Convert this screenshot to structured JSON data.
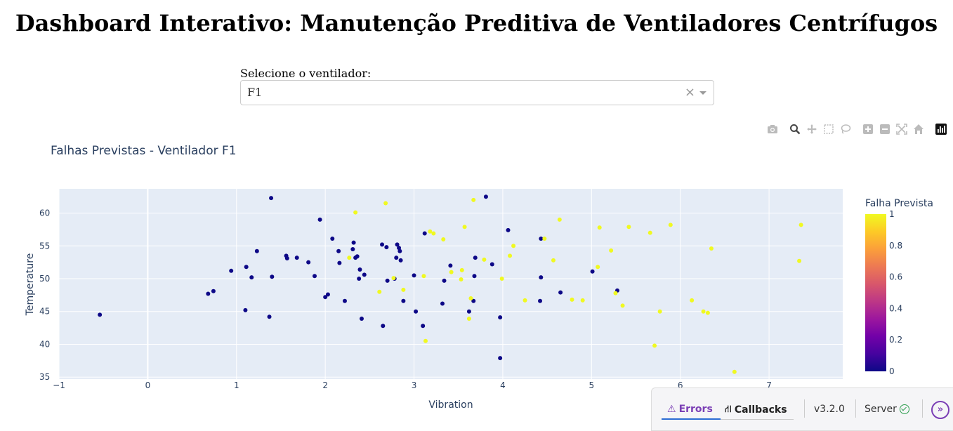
{
  "page": {
    "title": "Dashboard Interativo: Manutenção Preditiva de Ventiladores Centrífugos"
  },
  "selector": {
    "label": "Selecione o ventilador:",
    "value": "F1",
    "clear_glyph": "×"
  },
  "modebar": {
    "icons": [
      "camera-icon",
      "zoom-icon",
      "pan-icon",
      "box-select-icon",
      "lasso-icon",
      "zoom-in-icon",
      "zoom-out-icon",
      "autoscale-icon",
      "reset-axes-icon",
      "plotly-logo-icon"
    ]
  },
  "chart_data": {
    "type": "scatter",
    "title": "Falhas Previstas - Ventilador F1",
    "xlabel": "Vibration",
    "ylabel": "Temperature",
    "xlim": [
      -1,
      7.83
    ],
    "ylim": [
      34.7,
      63.7
    ],
    "xticks": [
      -1,
      0,
      1,
      2,
      3,
      4,
      5,
      6,
      7
    ],
    "yticks": [
      35,
      40,
      45,
      50,
      55,
      60
    ],
    "grid": true,
    "colorbar": {
      "title": "Falha Prevista",
      "ticks": [
        "1",
        "0.8",
        "0.6",
        "0.4",
        "0.2",
        "0"
      ],
      "colors": [
        "#0d0887",
        "#46039f",
        "#7201a8",
        "#9c179e",
        "#bd3786",
        "#d8576b",
        "#ed7953",
        "#fb9f3a",
        "#fdca26",
        "#f0f921"
      ]
    },
    "colors": {
      "fail": "#f0f921",
      "ok": "#0d0887",
      "plot_bg": "#e5ecf6"
    },
    "series": [
      {
        "name": "0",
        "points": [
          [
            -0.54,
            44.5
          ],
          [
            0.68,
            47.7
          ],
          [
            0.74,
            48.1
          ],
          [
            0.94,
            51.2
          ],
          [
            1.1,
            45.2
          ],
          [
            1.11,
            51.8
          ],
          [
            1.17,
            50.2
          ],
          [
            1.23,
            54.2
          ],
          [
            1.37,
            44.2
          ],
          [
            1.39,
            62.3
          ],
          [
            1.4,
            50.3
          ],
          [
            1.56,
            53.5
          ],
          [
            1.57,
            53.1
          ],
          [
            1.68,
            53.2
          ],
          [
            1.81,
            52.5
          ],
          [
            1.88,
            50.4
          ],
          [
            1.94,
            59.0
          ],
          [
            2.0,
            47.2
          ],
          [
            2.03,
            47.6
          ],
          [
            2.08,
            56.1
          ],
          [
            2.15,
            54.2
          ],
          [
            2.16,
            52.4
          ],
          [
            2.22,
            46.6
          ],
          [
            2.31,
            54.5
          ],
          [
            2.32,
            55.5
          ],
          [
            2.34,
            53.2
          ],
          [
            2.36,
            53.4
          ],
          [
            2.38,
            50.0
          ],
          [
            2.39,
            51.4
          ],
          [
            2.41,
            43.9
          ],
          [
            2.44,
            50.6
          ],
          [
            2.64,
            55.2
          ],
          [
            2.65,
            42.8
          ],
          [
            2.69,
            54.8
          ],
          [
            2.7,
            49.7
          ],
          [
            2.78,
            50.0
          ],
          [
            2.8,
            53.2
          ],
          [
            2.81,
            55.2
          ],
          [
            2.83,
            54.7
          ],
          [
            2.84,
            54.2
          ],
          [
            2.85,
            52.8
          ],
          [
            2.88,
            46.6
          ],
          [
            3.0,
            50.5
          ],
          [
            3.02,
            45.0
          ],
          [
            3.1,
            42.8
          ],
          [
            3.12,
            56.9
          ],
          [
            3.32,
            46.2
          ],
          [
            3.34,
            49.7
          ],
          [
            3.41,
            52.0
          ],
          [
            3.62,
            45.0
          ],
          [
            3.67,
            46.6
          ],
          [
            3.68,
            50.4
          ],
          [
            3.69,
            53.2
          ],
          [
            3.81,
            62.5
          ],
          [
            3.88,
            52.2
          ],
          [
            3.97,
            44.1
          ],
          [
            3.97,
            37.9
          ],
          [
            4.06,
            57.4
          ],
          [
            4.42,
            46.6
          ],
          [
            4.43,
            50.2
          ],
          [
            4.43,
            56.1
          ],
          [
            4.65,
            47.9
          ],
          [
            5.01,
            51.1
          ],
          [
            5.29,
            48.2
          ]
        ]
      },
      {
        "name": "1",
        "points": [
          [
            2.27,
            53.2
          ],
          [
            2.34,
            60.1
          ],
          [
            2.61,
            48.0
          ],
          [
            2.68,
            61.5
          ],
          [
            2.77,
            50.1
          ],
          [
            2.88,
            48.3
          ],
          [
            3.11,
            50.4
          ],
          [
            3.13,
            40.5
          ],
          [
            3.18,
            57.2
          ],
          [
            3.22,
            56.9
          ],
          [
            3.33,
            56.0
          ],
          [
            3.42,
            51.0
          ],
          [
            3.53,
            49.9
          ],
          [
            3.54,
            51.3
          ],
          [
            3.57,
            57.9
          ],
          [
            3.62,
            43.9
          ],
          [
            3.64,
            47.0
          ],
          [
            3.67,
            62.0
          ],
          [
            3.79,
            52.9
          ],
          [
            3.99,
            50.0
          ],
          [
            4.08,
            53.5
          ],
          [
            4.12,
            55.0
          ],
          [
            4.25,
            46.7
          ],
          [
            4.47,
            56.1
          ],
          [
            4.57,
            52.8
          ],
          [
            4.64,
            59.0
          ],
          [
            4.78,
            46.8
          ],
          [
            4.9,
            46.7
          ],
          [
            5.07,
            51.8
          ],
          [
            5.09,
            57.8
          ],
          [
            5.22,
            54.3
          ],
          [
            5.27,
            47.8
          ],
          [
            5.35,
            45.9
          ],
          [
            5.42,
            57.9
          ],
          [
            5.66,
            57.0
          ],
          [
            5.71,
            39.8
          ],
          [
            5.77,
            45.0
          ],
          [
            5.89,
            58.2
          ],
          [
            6.13,
            46.7
          ],
          [
            6.26,
            45.0
          ],
          [
            6.31,
            44.8
          ],
          [
            6.35,
            54.6
          ],
          [
            6.61,
            35.8
          ],
          [
            7.34,
            52.7
          ],
          [
            7.36,
            58.2
          ]
        ]
      }
    ]
  },
  "debug_bar": {
    "errors_label": "Errors",
    "errors_glyph": "⚠",
    "callbacks_label": "Callbacks",
    "callbacks_glyph": "⛙",
    "version": "v3.2.0",
    "server_label": "Server",
    "expand_glyph": "»"
  }
}
